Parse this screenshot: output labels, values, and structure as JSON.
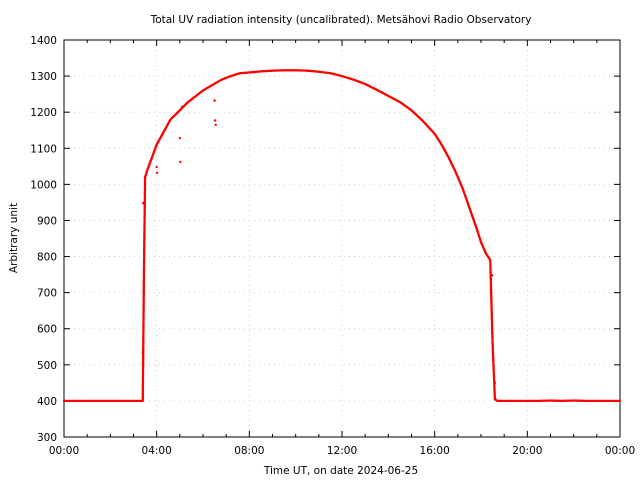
{
  "chart_data": {
    "type": "scatter",
    "title": "Total UV radiation intensity (uncalibrated). Metsähovi Radio Observatory",
    "xlabel": "Time UT, on date 2024-06-25",
    "ylabel": "Arbitrary unit",
    "xlim": [
      0,
      24
    ],
    "ylim": [
      300,
      1400
    ],
    "grid": true,
    "legend": "none",
    "x_ticks": [
      {
        "value": 0,
        "label": "00:00"
      },
      {
        "value": 4,
        "label": "04:00"
      },
      {
        "value": 8,
        "label": "08:00"
      },
      {
        "value": 12,
        "label": "12:00"
      },
      {
        "value": 16,
        "label": "16:00"
      },
      {
        "value": 20,
        "label": "20:00"
      },
      {
        "value": 24,
        "label": "00:00"
      }
    ],
    "y_ticks": [
      {
        "value": 300,
        "label": "300"
      },
      {
        "value": 400,
        "label": "400"
      },
      {
        "value": 500,
        "label": "500"
      },
      {
        "value": 600,
        "label": "600"
      },
      {
        "value": 700,
        "label": "700"
      },
      {
        "value": 800,
        "label": "800"
      },
      {
        "value": 900,
        "label": "900"
      },
      {
        "value": 1000,
        "label": "1000"
      },
      {
        "value": 1100,
        "label": "1100"
      },
      {
        "value": 1200,
        "label": "1200"
      },
      {
        "value": 1300,
        "label": "1300"
      },
      {
        "value": 1400,
        "label": "1400"
      }
    ],
    "series": [
      {
        "color": "#ff0000",
        "x": [
          0.0,
          1.0,
          2.0,
          3.0,
          3.4,
          3.45,
          3.5,
          3.6,
          3.8,
          4.0,
          4.3,
          4.6,
          5.0,
          5.3,
          5.6,
          6.0,
          6.4,
          6.8,
          7.2,
          7.6,
          8.0,
          8.5,
          9.0,
          9.5,
          10.0,
          10.5,
          11.0,
          11.5,
          12.0,
          12.5,
          13.0,
          13.5,
          14.0,
          14.5,
          15.0,
          15.5,
          16.0,
          16.3,
          16.6,
          16.9,
          17.2,
          17.5,
          17.8,
          18.0,
          18.2,
          18.4,
          18.5,
          18.6,
          18.7,
          19.0,
          19.5,
          20.0,
          20.5,
          21.0,
          21.5,
          22.0,
          22.5,
          23.0,
          23.5,
          24.0
        ],
        "y": [
          400,
          400,
          400,
          400,
          400,
          750,
          1020,
          1040,
          1075,
          1110,
          1145,
          1180,
          1205,
          1225,
          1240,
          1260,
          1275,
          1290,
          1300,
          1308,
          1310,
          1313,
          1315,
          1316,
          1316,
          1315,
          1312,
          1308,
          1300,
          1290,
          1278,
          1262,
          1245,
          1228,
          1205,
          1175,
          1140,
          1110,
          1075,
          1035,
          990,
          935,
          880,
          840,
          810,
          790,
          560,
          405,
          400,
          400,
          400,
          400,
          400,
          401,
          400,
          401,
          400,
          400,
          400,
          400
        ]
      },
      {
        "color": "#ff0000",
        "x": [
          3.4,
          3.42,
          4.0,
          4.02,
          5.0,
          5.02,
          5.1,
          6.5,
          6.52,
          6.55,
          18.48,
          18.6
        ],
        "y": [
          535,
          948,
          1048,
          1032,
          1128,
          1062,
          1215,
          1232,
          1177,
          1165,
          748,
          450
        ]
      }
    ]
  }
}
